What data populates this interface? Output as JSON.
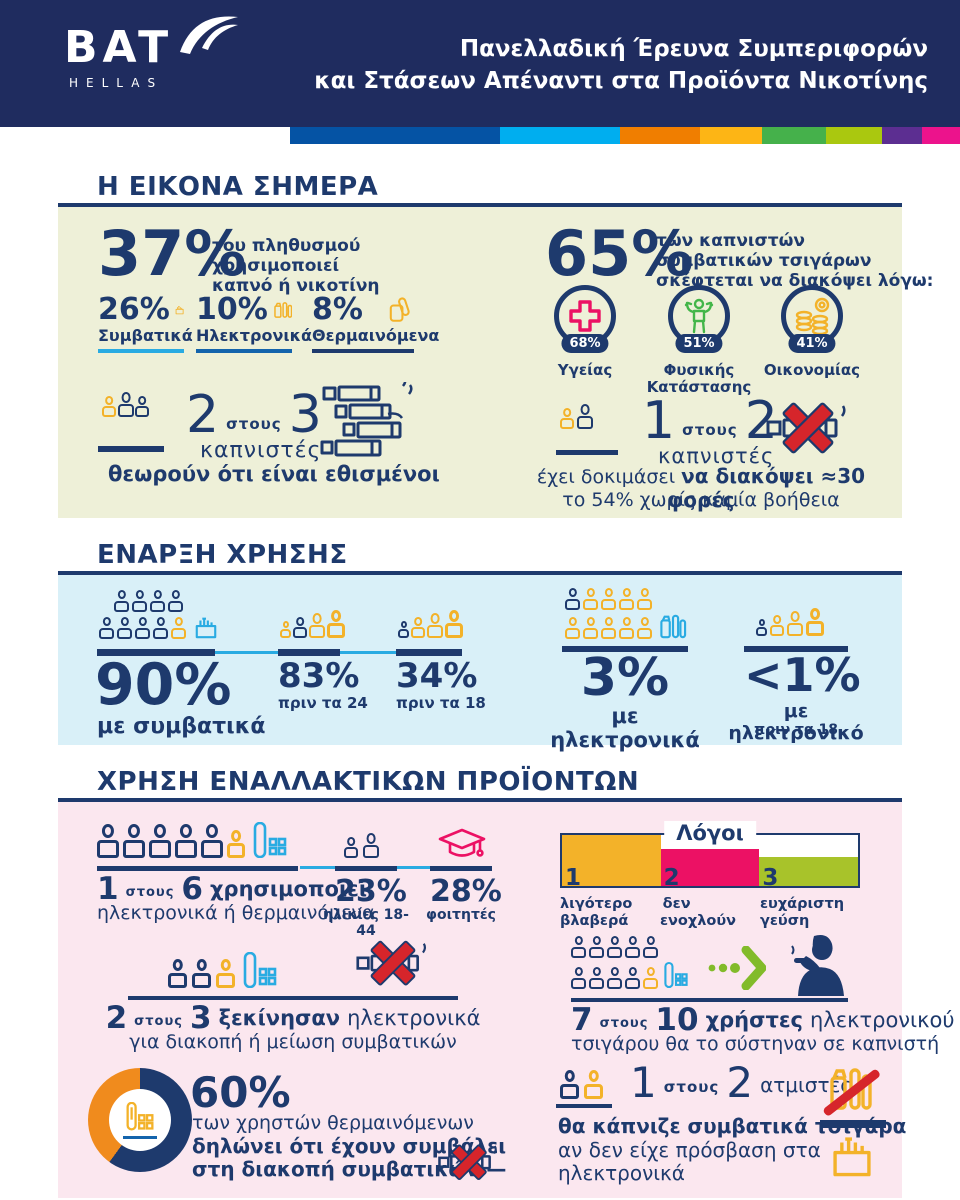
{
  "palette": {
    "navy": "#1e3a6d",
    "header_bg": "#1f2c5f",
    "yellow": "#f3b229",
    "cyan": "#29abe2",
    "blue": "#1464ac",
    "magenta": "#ec1164",
    "green": "#43b649",
    "lime": "#a8c32a",
    "orange": "#f08b1d",
    "red": "#d6252b",
    "section1_bg": "#eef0d8",
    "section2_bg": "#d9f0f8",
    "section3_bg": "#fbe7ef"
  },
  "header": {
    "logo_text": "BAT",
    "logo_sub": "HELLAS",
    "title_line1": "Πανελλαδική Έρευνα Συμπεριφορών",
    "title_line2": "και Στάσεων Απέναντι στα Προϊόντα Νικοτίνης",
    "stripe_colors": [
      "#0553a4",
      "#00aeef",
      "#f07e00",
      "#fdb515",
      "#45b14b",
      "#aac80f",
      "#5c2e91",
      "#ec138c"
    ]
  },
  "section1": {
    "heading": "Η ΕΙΚΟΝΑ ΣΗΜΕΡΑ",
    "stat37": {
      "value": "37%",
      "caption1": "του πληθυσμού",
      "caption2": "χρησιμοποιεί",
      "caption3": "καπνό ή νικοτίνη"
    },
    "substats": [
      {
        "value": "26%",
        "label": "Συμβατικά"
      },
      {
        "value": "10%",
        "label": "Ηλεκτρονικά"
      },
      {
        "value": "8%",
        "label": "Θερμαινόμενα"
      }
    ],
    "fact_addicted": {
      "n1": "2",
      "conj": "στους",
      "n2": "3",
      "noun": "καπνιστές",
      "line": "θεωρούν ότι είναι εθισμένοι"
    },
    "stat65": {
      "value": "65%",
      "caption1": "των καπνιστών",
      "caption2": "συμβατικών τσιγάρων",
      "caption3": "σκέφτεται να διακόψει λόγω:"
    },
    "reasons": [
      {
        "pct": "68%",
        "label1": "Υγείας",
        "label2": ""
      },
      {
        "pct": "51%",
        "label1": "Φυσικής",
        "label2": "Κατάστασης"
      },
      {
        "pct": "41%",
        "label1": "Οικονομίας",
        "label2": ""
      }
    ],
    "fact_quit": {
      "n1": "1",
      "conj": "στους",
      "n2": "2",
      "noun": "καπνιστές",
      "line1_regular": "έχει δοκιμάσει ",
      "line1_bold": "να διακόψει ≈30 φορές",
      "line2": "το 54% χωρίς καμία βοήθεια"
    }
  },
  "section2": {
    "heading": "ΕΝΑΡΞΗ ΧΡΗΣΗΣ",
    "conventional": {
      "pct": "90%",
      "label": "με συμβατικά"
    },
    "before24": {
      "pct": "83%",
      "label": "πριν τα 24"
    },
    "before18": {
      "pct": "34%",
      "label": "πριν τα 18"
    },
    "ecig": {
      "pct": "3%",
      "label": "με ηλεκτρονικά"
    },
    "ecig18": {
      "pct": "<1%",
      "label1": "με ηλεκτρονικό",
      "label2": "πριν τα 18"
    }
  },
  "section3": {
    "heading": "ΧΡΗΣΗ ΕΝΑΛΛΑΚΤΙΚΩΝ ΠΡΟΪΟΝΤΩΝ",
    "fact_1in6": {
      "n1": "1",
      "conj": "στους",
      "n2": "6",
      "verb": "χρησιμοποιεί",
      "line2": "ηλεκτρονικά ή θερμαινόμενα"
    },
    "stat23": {
      "pct": "23%",
      "label": "ηλικίες 18-44"
    },
    "stat28": {
      "pct": "28%",
      "label": "φοιτητές"
    },
    "reasons_chart": {
      "title": "Λόγοι",
      "bars": [
        {
          "rank": "1",
          "label1": "λιγότερο",
          "label2": "βλαβερά",
          "color": "#f3b229",
          "height_pct": 100
        },
        {
          "rank": "2",
          "label1": "δεν",
          "label2": "ενοχλούν",
          "color": "#ec1164",
          "height_pct": 73
        },
        {
          "rank": "3",
          "label1": "ευχάριστη",
          "label2": "γεύση",
          "color": "#a8c32a",
          "height_pct": 56
        }
      ]
    },
    "fact_2in3": {
      "n1": "2",
      "conj": "στους",
      "n2": "3",
      "bold": "ξεκίνησαν",
      "rest": "ηλεκτρονικά",
      "line2": "για διακοπή ή μείωση συμβατικών"
    },
    "fact_7in10": {
      "n1": "7",
      "conj": "στους",
      "n2": "10",
      "bold": "χρήστες",
      "rest": "ηλεκτρονικού",
      "line2": "τσιγάρου θα το σύστηναν σε καπνιστή"
    },
    "stat60": {
      "pct": "60%",
      "line1": "των χρηστών θερμαινόμενων",
      "line2": "δηλώνει ότι έχουν συμβάλει",
      "line3": "στη διακοπή συμβατικών —",
      "donut": {
        "values": [
          60,
          40
        ],
        "colors": [
          "#1e3a6d",
          "#f08b1d"
        ]
      }
    },
    "fact_vapers": {
      "n1": "1",
      "conj": "στους",
      "n2": "2",
      "noun": "ατμιστές",
      "line1": "θα κάπνιζε συμβατικά τσιγάρα",
      "line2": "αν δεν είχε πρόσβαση στα",
      "line3": "ηλεκτρονικά"
    }
  },
  "chart_data": [
    {
      "type": "bar",
      "title": "Λόγοι",
      "categories": [
        "λιγότερο βλαβερά",
        "δεν ενοχλούν",
        "ευχάριστη γεύση"
      ],
      "values": [
        1,
        2,
        3
      ],
      "value_meaning": "ranking (1 = top reason)",
      "relative_heights": [
        100,
        73,
        56
      ],
      "colors": [
        "#f3b229",
        "#ec1164",
        "#a8c32a"
      ],
      "legend_position": "top"
    },
    {
      "type": "pie",
      "title": "60% των χρηστών θερμαινόμενων δηλώνει ότι έχουν συμβάλει στη διακοπή συμβατικών",
      "values": [
        60,
        40
      ],
      "colors": [
        "#1e3a6d",
        "#f08b1d"
      ]
    },
    {
      "type": "table",
      "title": "Η εικόνα σήμερα",
      "rows": [
        [
          "του πληθυσμού χρησιμοποιεί καπνό ή νικοτίνη",
          "37%"
        ],
        [
          "Συμβατικά",
          "26%"
        ],
        [
          "Ηλεκτρονικά",
          "10%"
        ],
        [
          "Θερμαινόμενα",
          "8%"
        ],
        [
          "σκέφτεται να διακόψει",
          "65%"
        ],
        [
          "λόγω Υγείας",
          "68%"
        ],
        [
          "λόγω Φυσικής Κατάστασης",
          "51%"
        ],
        [
          "λόγω Οικονομίας",
          "41%"
        ]
      ]
    },
    {
      "type": "table",
      "title": "Έναρξη χρήσης",
      "rows": [
        [
          "με συμβατικά",
          "90%"
        ],
        [
          "πριν τα 24",
          "83%"
        ],
        [
          "πριν τα 18",
          "34%"
        ],
        [
          "με ηλεκτρονικά",
          "3%"
        ],
        [
          "με ηλεκτρονικό πριν τα 18",
          "<1%"
        ]
      ]
    },
    {
      "type": "table",
      "title": "Χρήση εναλλακτικών προϊόντων",
      "rows": [
        [
          "χρησιμοποιεί ηλεκτρονικά ή θερμαινόμενα",
          "1 στους 6"
        ],
        [
          "ηλικίες 18-44",
          "23%"
        ],
        [
          "φοιτητές",
          "28%"
        ],
        [
          "ξεκίνησαν ηλεκτρονικά για διακοπή ή μείωση συμβατικών",
          "2 στους 3"
        ],
        [
          "θα το σύστηναν σε καπνιστή",
          "7 στους 10"
        ],
        [
          "θερμαινόμενα συνέβαλαν στη διακοπή συμβατικών",
          "60%"
        ],
        [
          "ατμιστές θα κάπνιζαν συμβατικά χωρίς πρόσβαση στα ηλεκτρονικά",
          "1 στους 2"
        ]
      ]
    }
  ]
}
